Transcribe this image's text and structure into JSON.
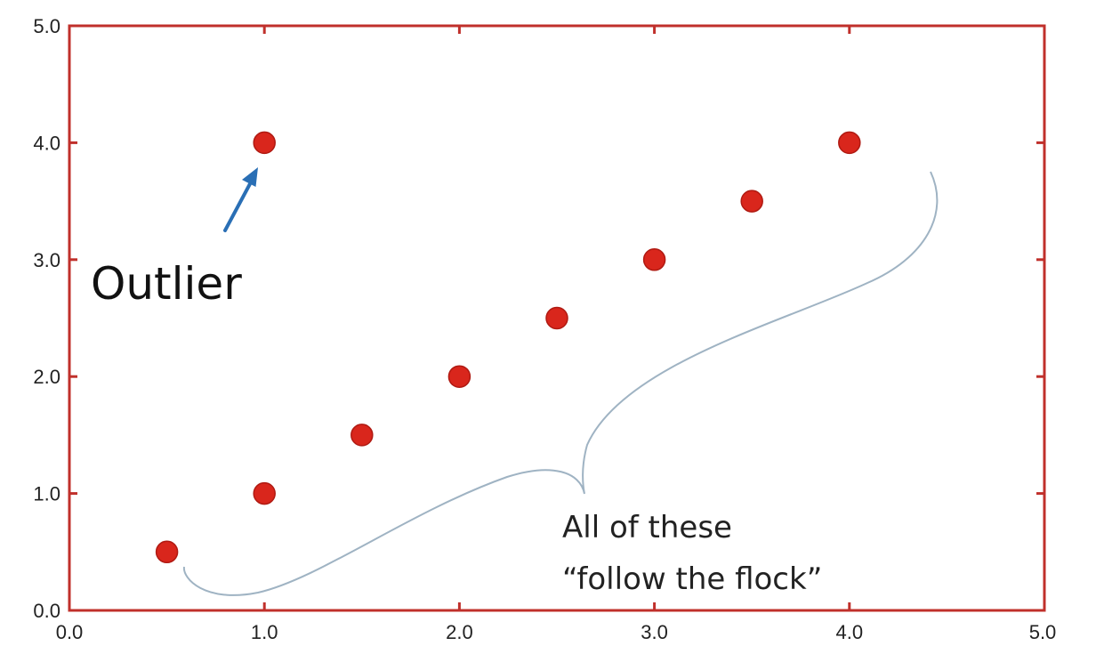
{
  "chart_data": {
    "type": "scatter",
    "title": "",
    "xlabel": "",
    "ylabel": "",
    "xlim": [
      0,
      5
    ],
    "ylim": [
      0,
      5
    ],
    "grid": false,
    "x_ticks": [
      "0.0",
      "1.0",
      "2.0",
      "3.0",
      "4.0",
      "5.0"
    ],
    "y_ticks": [
      "0.0",
      "1.0",
      "2.0",
      "3.0",
      "4.0",
      "5.0"
    ],
    "series": [
      {
        "x": [
          0.5,
          1.0,
          1.5,
          2.0,
          2.5,
          3.0,
          3.5,
          4.0
        ],
        "y": [
          0.5,
          1.0,
          1.5,
          2.0,
          2.5,
          3.0,
          3.5,
          4.0
        ]
      },
      {
        "x": [
          1.0
        ],
        "y": [
          4.0
        ]
      }
    ],
    "annotations": {
      "outlier": "Outlier",
      "flock_line1": "All of these",
      "flock_line2": "“follow the flock”"
    }
  },
  "colors": {
    "frame": "#c0302b",
    "point": "#d9261c",
    "point_edge": "#b01a12",
    "arrow": "#2a6fb5",
    "brace": "#9fb3c3"
  }
}
